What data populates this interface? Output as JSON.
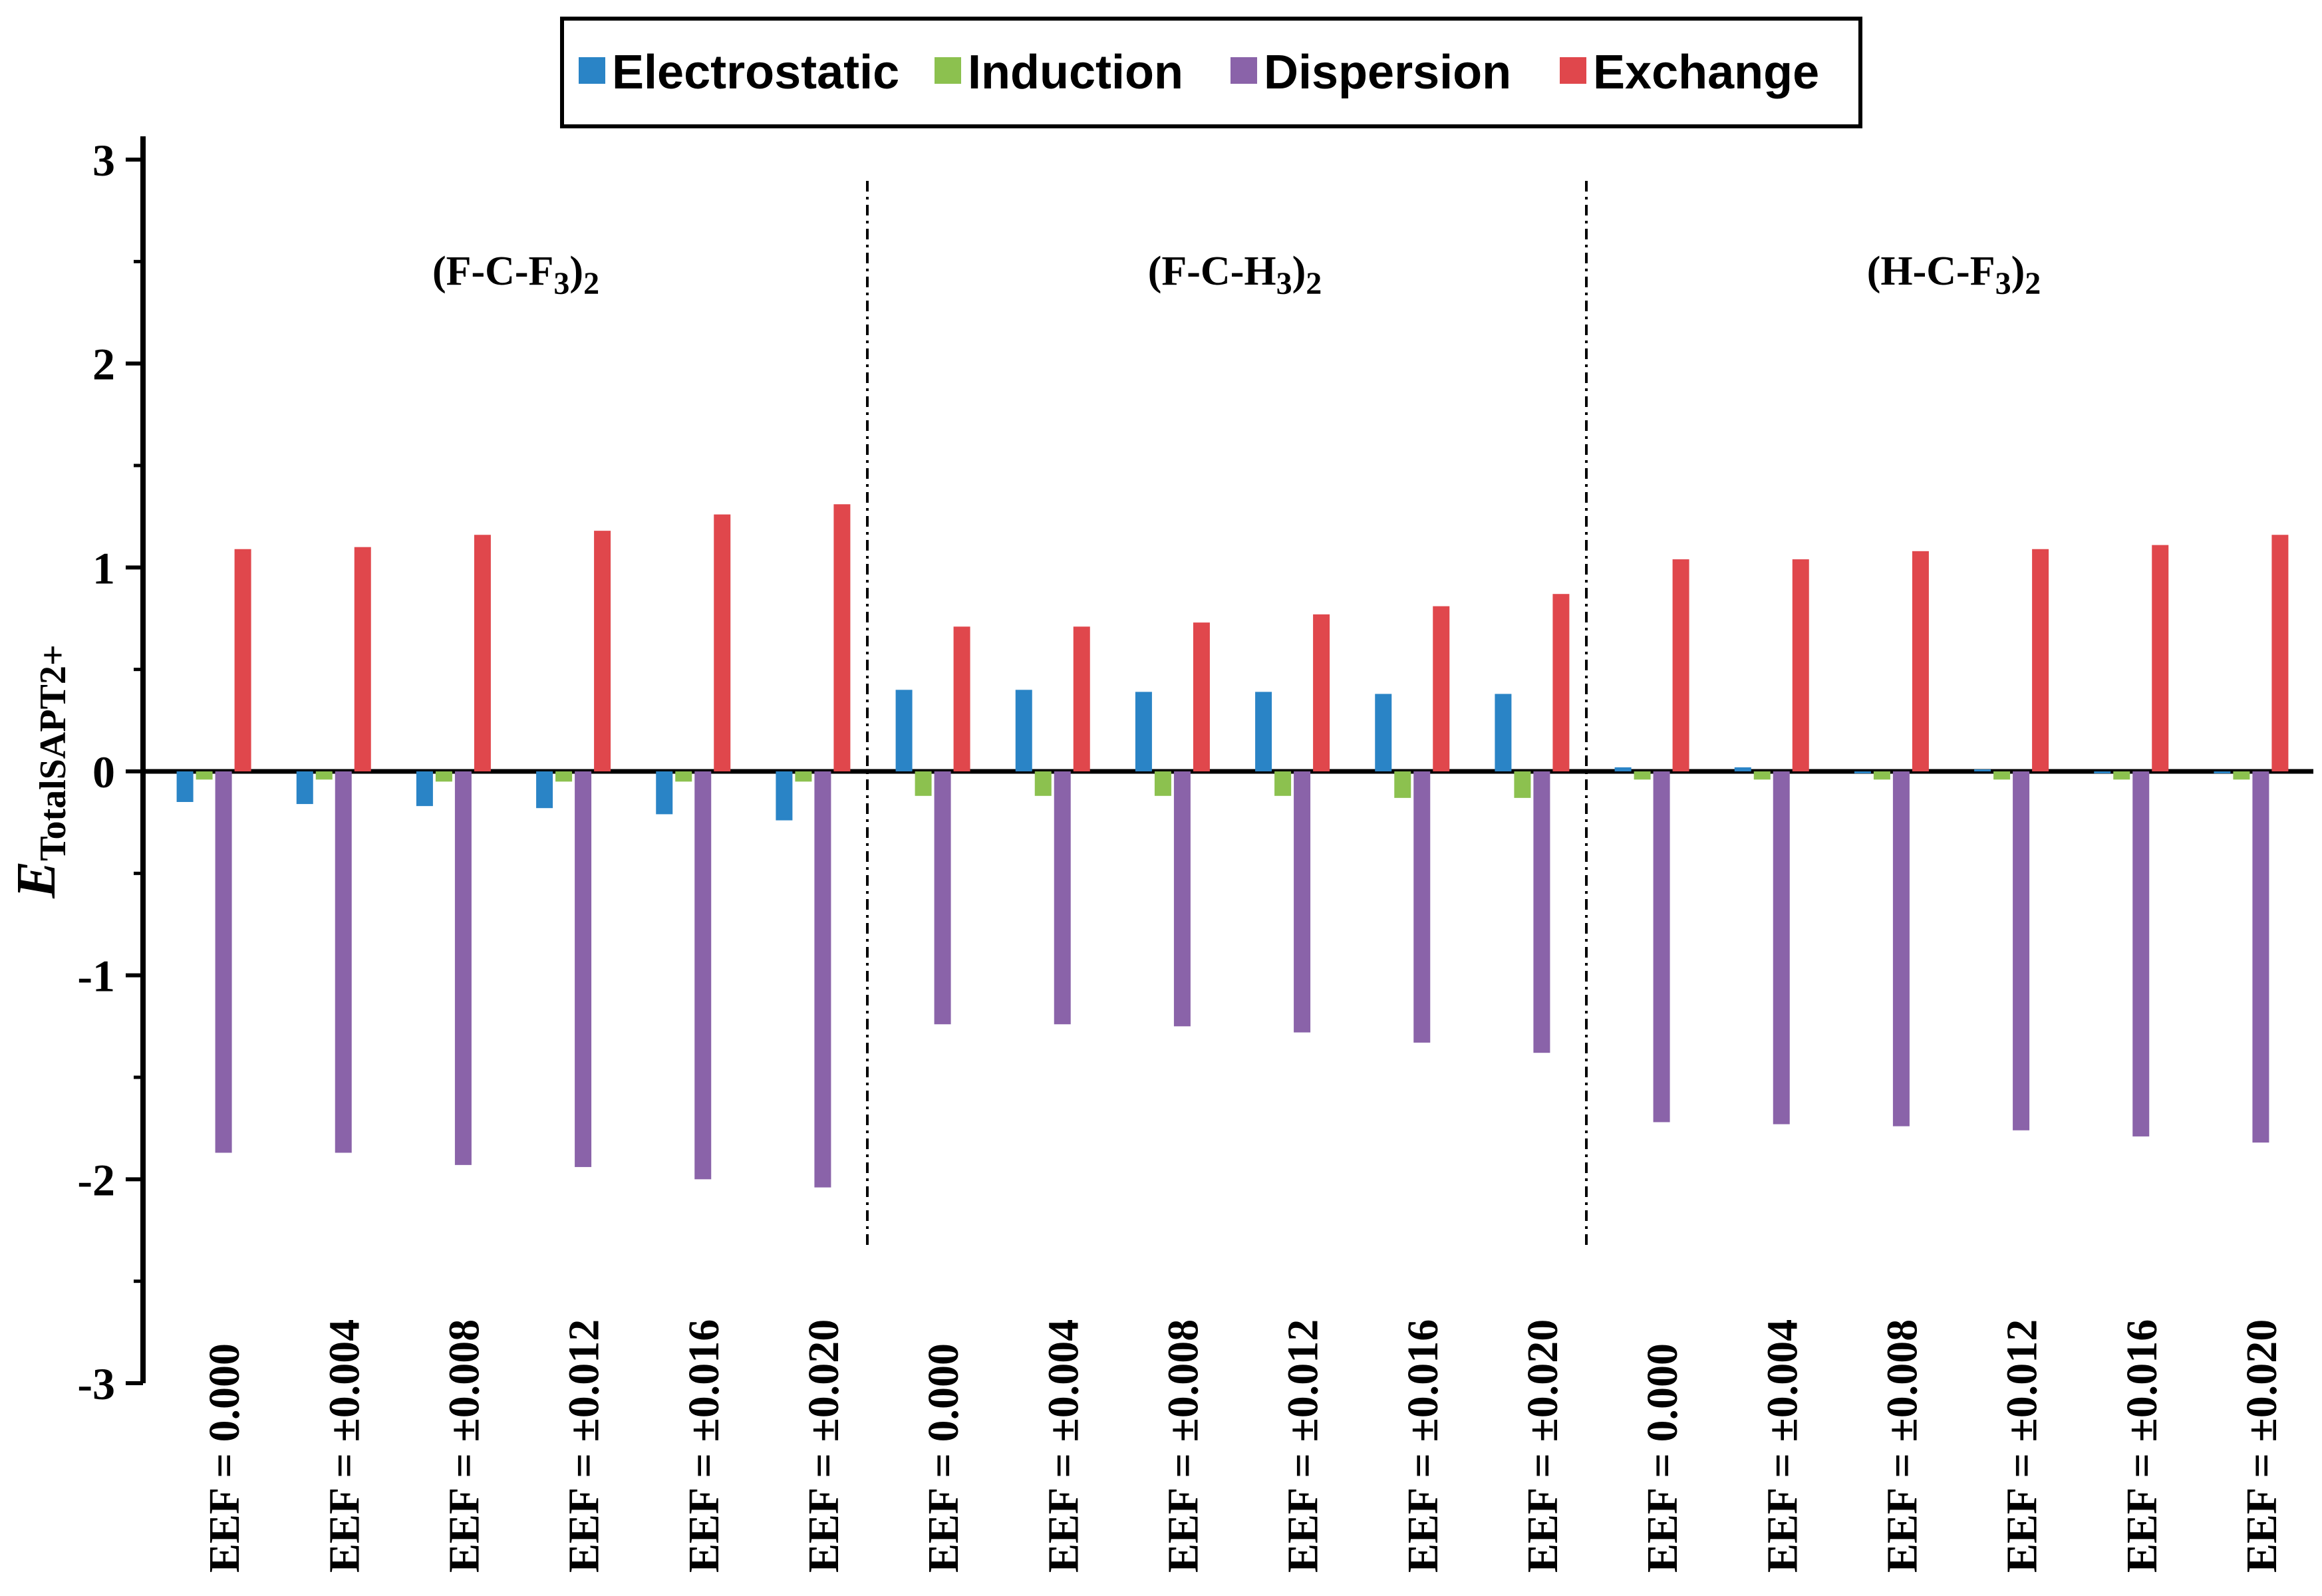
{
  "chart_data": {
    "type": "bar",
    "title": "",
    "ylabel": {
      "main": "E",
      "subscript": "TotalSAPT2+"
    },
    "xlabel": "",
    "ylim": [
      -3,
      3
    ],
    "yticks": [
      -3,
      -2,
      -1,
      0,
      1,
      2,
      3
    ],
    "ytick_labels": [
      "-3",
      "-2",
      "-1",
      "0",
      "1",
      "2",
      "3"
    ],
    "legend_position": "top-center",
    "groups": [
      {
        "name": "(F-C-F3)2",
        "base": "(F-C-F",
        "sub1": "3",
        "mid": ")",
        "sub2": "2"
      },
      {
        "name": "(F-C-H3)2",
        "base": "(F-C-H",
        "sub1": "3",
        "mid": ")",
        "sub2": "2"
      },
      {
        "name": "(H-C-F3)2",
        "base": "(H-C-F",
        "sub1": "3",
        "mid": ")",
        "sub2": "2"
      }
    ],
    "categories": [
      "EEF = 0.000",
      "EEF = ±0.004",
      "EEF = ±0.008",
      "EEF = ±0.012",
      "EEF = ±0.016",
      "EEF = ±0.020",
      "EEF = 0.000",
      "EEF = ±0.004",
      "EEF = ±0.008",
      "EEF = ±0.012",
      "EEF = ±0.016",
      "EEF = ±0.020",
      "EEF = 0.000",
      "EEF = ±0.004",
      "EEF = ±0.008",
      "EEF = ±0.012",
      "EEF = ±0.016",
      "EEF = ±0.020"
    ],
    "series": [
      {
        "name": "Electrostatic",
        "color": "#2a84c6",
        "values": [
          -0.15,
          -0.16,
          -0.17,
          -0.18,
          -0.21,
          -0.24,
          0.4,
          0.4,
          0.39,
          0.39,
          0.38,
          0.38,
          0.02,
          0.02,
          0.0,
          0.01,
          0.0,
          0.0
        ]
      },
      {
        "name": "Induction",
        "color": "#8cc14f",
        "values": [
          -0.04,
          -0.04,
          -0.05,
          -0.05,
          -0.05,
          -0.05,
          -0.12,
          -0.12,
          -0.12,
          -0.12,
          -0.13,
          -0.13,
          -0.04,
          -0.04,
          -0.04,
          -0.04,
          -0.04,
          -0.04
        ]
      },
      {
        "name": "Dispersion",
        "color": "#8a63a9",
        "values": [
          -1.87,
          -1.87,
          -1.93,
          -1.94,
          -2.0,
          -2.04,
          -1.24,
          -1.24,
          -1.25,
          -1.28,
          -1.33,
          -1.38,
          -1.72,
          -1.73,
          -1.74,
          -1.76,
          -1.79,
          -1.82
        ]
      },
      {
        "name": "Exchange",
        "color": "#e0474c",
        "values": [
          1.09,
          1.1,
          1.16,
          1.18,
          1.26,
          1.31,
          0.71,
          0.71,
          0.73,
          0.77,
          0.81,
          0.87,
          1.04,
          1.04,
          1.08,
          1.09,
          1.11,
          1.16
        ]
      }
    ]
  }
}
